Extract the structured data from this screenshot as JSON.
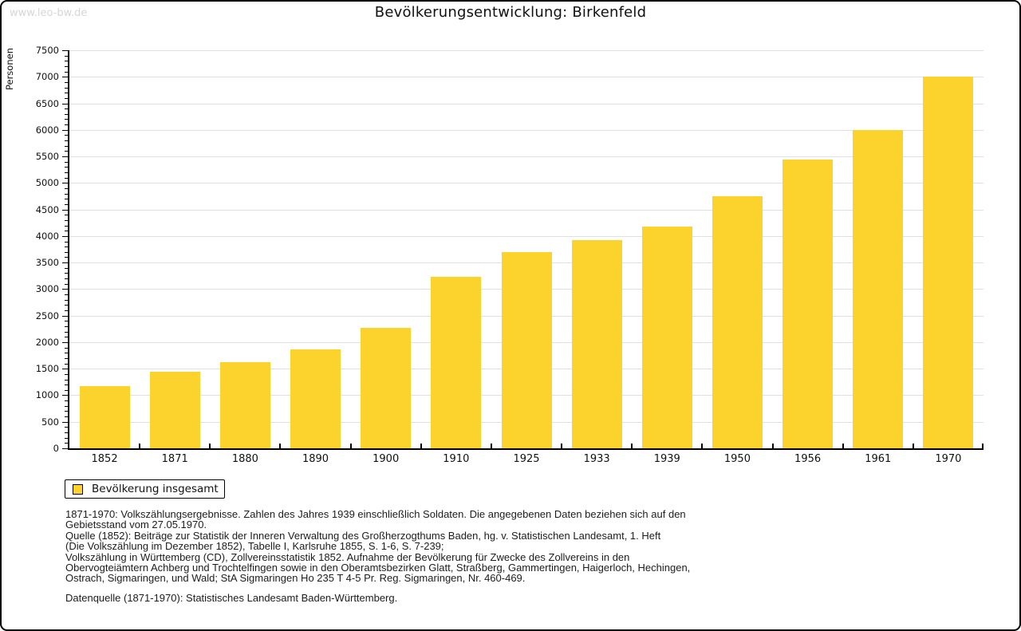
{
  "site": "www.leo-bw.de",
  "header": {
    "title": "Bevölkerungsentwicklung: Birkenfeld"
  },
  "chart_data": {
    "type": "bar",
    "title": "Bevölkerungsentwicklung: Birkenfeld",
    "xlabel": "",
    "ylabel": "Personen",
    "ylim": [
      0,
      7500
    ],
    "y_major_step": 500,
    "y_minor_step": 100,
    "grid": "horizontal-major",
    "legend_position": "bottom-left",
    "bar_color": "#fcd32c",
    "categories": [
      "1852",
      "1871",
      "1880",
      "1890",
      "1900",
      "1910",
      "1925",
      "1933",
      "1939",
      "1950",
      "1956",
      "1961",
      "1970"
    ],
    "series": [
      {
        "name": "Bevölkerung insgesamt",
        "values": [
          1180,
          1440,
          1630,
          1860,
          2270,
          3230,
          3700,
          3920,
          4180,
          4750,
          5440,
          5990,
          7010
        ]
      }
    ]
  },
  "legend": {
    "label": "Bevölkerung insgesamt",
    "swatch_color": "#fcd32c"
  },
  "footer": {
    "lines": [
      "1871-1970: Volkszählungsergebnisse. Zahlen des Jahres 1939 einschließlich Soldaten. Die angegebenen Daten beziehen sich auf den",
      "Gebietsstand vom 27.05.1970.",
      "Quelle (1852): Beiträge zur Statistik der Inneren Verwaltung des Großherzogthums Baden, hg. v. Statistischen Landesamt, 1. Heft",
      "(Die Volkszählung im Dezember 1852), Tabelle I, Karlsruhe 1855, S. 1-6, S. 7-239;",
      "Volkszählung in Württemberg (CD), Zollvereinsstatistik 1852. Aufnahme der Bevölkerung für Zwecke des Zollvereins in den",
      "Obervogteiämtern Achberg und Trochtelfingen sowie in den Oberamtsbezirken Glatt, Straßberg, Gammertingen, Haigerloch, Hechingen,",
      "Ostrach, Sigmaringen, und Wald; StA Sigmaringen Ho 235 T 4-5 Pr. Reg. Sigmaringen, Nr. 460-469."
    ],
    "datasource": "Datenquelle (1871-1970): Statistisches Landesamt Baden-Württemberg."
  }
}
